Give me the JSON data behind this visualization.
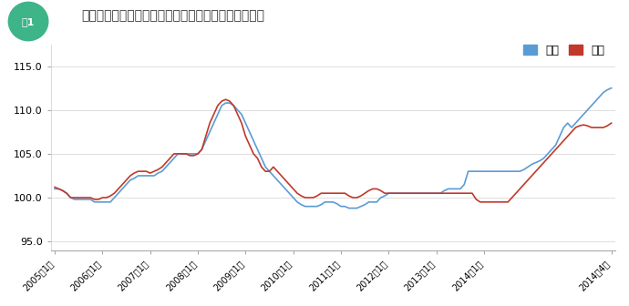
{
  "title": "マンション（鉄筋コンクリート造）建設工事費の推移",
  "figure_label": "図1",
  "ylabel_ticks": [
    95.0,
    100.0,
    105.0,
    110.0,
    115.0
  ],
  "ylim": [
    94.0,
    117.5
  ],
  "xlabel_ticks": [
    "2005年1月",
    "2006年1月",
    "2007年1月",
    "2008年1月",
    "2009年1月",
    "2010年1月",
    "2011年1月",
    "2012年1月",
    "2013年1月",
    "2014年1月",
    "2014年4月"
  ],
  "legend_tokyo": "東京",
  "legend_osaka": "大坂",
  "color_tokyo": "#5b9bd5",
  "color_osaka": "#c0392b",
  "bg_color": "#ffffff",
  "fig_label_bg": "#3eb489",
  "tokyo": [
    101.0,
    101.0,
    100.8,
    100.5,
    100.0,
    99.8,
    99.8,
    99.8,
    99.8,
    99.8,
    99.5,
    99.5,
    99.5,
    99.5,
    99.5,
    100.0,
    100.5,
    101.0,
    101.5,
    102.0,
    102.2,
    102.5,
    102.5,
    102.5,
    102.5,
    102.5,
    102.8,
    103.0,
    103.5,
    104.0,
    104.5,
    105.0,
    105.0,
    105.0,
    105.0,
    105.0,
    105.0,
    105.5,
    106.5,
    107.5,
    108.5,
    109.5,
    110.5,
    110.8,
    110.8,
    110.5,
    110.0,
    109.5,
    108.5,
    107.5,
    106.5,
    105.5,
    104.5,
    103.5,
    103.0,
    102.5,
    102.0,
    101.5,
    101.0,
    100.5,
    100.0,
    99.5,
    99.2,
    99.0,
    99.0,
    99.0,
    99.0,
    99.2,
    99.5,
    99.5,
    99.5,
    99.3,
    99.0,
    99.0,
    98.8,
    98.8,
    98.8,
    99.0,
    99.2,
    99.5,
    99.5,
    99.5,
    100.0,
    100.2,
    100.5,
    100.5,
    100.5,
    100.5,
    100.5,
    100.5,
    100.5,
    100.5,
    100.5,
    100.5,
    100.5,
    100.5,
    100.5,
    100.5,
    100.8,
    101.0,
    101.0,
    101.0,
    101.0,
    101.5,
    103.0,
    103.0,
    103.0,
    103.0,
    103.0,
    103.0,
    103.0,
    103.0,
    103.0,
    103.0,
    103.0,
    103.0,
    103.0,
    103.0,
    103.2,
    103.5,
    103.8,
    104.0,
    104.2,
    104.5,
    105.0,
    105.5,
    106.0,
    107.0,
    108.0,
    108.5,
    108.0,
    108.5,
    109.0,
    109.5,
    110.0,
    110.5,
    111.0,
    111.5,
    112.0,
    112.3,
    112.5
  ],
  "osaka": [
    101.2,
    101.0,
    100.8,
    100.5,
    100.0,
    100.0,
    100.0,
    100.0,
    100.0,
    100.0,
    99.8,
    99.8,
    100.0,
    100.0,
    100.2,
    100.5,
    101.0,
    101.5,
    102.0,
    102.5,
    102.8,
    103.0,
    103.0,
    103.0,
    102.8,
    103.0,
    103.2,
    103.5,
    104.0,
    104.5,
    105.0,
    105.0,
    105.0,
    105.0,
    104.8,
    104.8,
    105.0,
    105.5,
    107.0,
    108.5,
    109.5,
    110.5,
    111.0,
    111.2,
    111.0,
    110.5,
    109.5,
    108.5,
    107.0,
    106.0,
    105.0,
    104.5,
    103.5,
    103.0,
    103.0,
    103.5,
    103.0,
    102.5,
    102.0,
    101.5,
    101.0,
    100.5,
    100.2,
    100.0,
    100.0,
    100.0,
    100.2,
    100.5,
    100.5,
    100.5,
    100.5,
    100.5,
    100.5,
    100.5,
    100.2,
    100.0,
    100.0,
    100.2,
    100.5,
    100.8,
    101.0,
    101.0,
    100.8,
    100.5,
    100.5,
    100.5,
    100.5,
    100.5,
    100.5,
    100.5,
    100.5,
    100.5,
    100.5,
    100.5,
    100.5,
    100.5,
    100.5,
    100.5,
    100.5,
    100.5,
    100.5,
    100.5,
    100.5,
    100.5,
    100.5,
    100.5,
    99.8,
    99.5,
    99.5,
    99.5,
    99.5,
    99.5,
    99.5,
    99.5,
    99.5,
    100.0,
    100.5,
    101.0,
    101.5,
    102.0,
    102.5,
    103.0,
    103.5,
    104.0,
    104.5,
    105.0,
    105.5,
    106.0,
    106.5,
    107.0,
    107.5,
    108.0,
    108.2,
    108.3,
    108.2,
    108.0,
    108.0,
    108.0,
    108.0,
    108.2,
    108.5
  ]
}
